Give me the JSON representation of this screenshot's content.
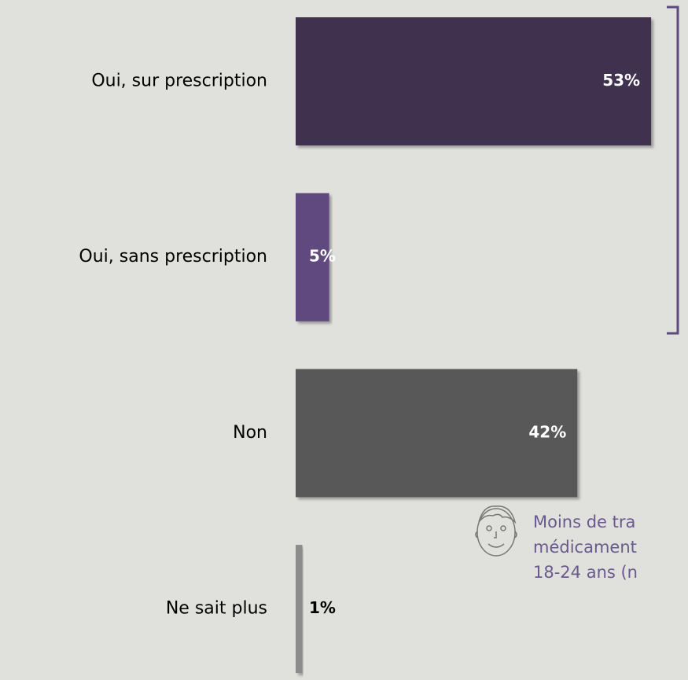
{
  "chart_data": {
    "type": "hbar",
    "categories": [
      "Oui, sur prescription",
      "Oui, sans prescription",
      "Non",
      "Ne sait plus"
    ],
    "values": [
      53,
      5,
      42,
      1
    ],
    "value_labels": [
      "53%",
      "5%",
      "42%",
      "1%"
    ],
    "colors": [
      "#403050",
      "#5e4a7e",
      "#595959",
      "#8c8c8c"
    ],
    "value_label_colors": [
      "#ffffff",
      "#ffffff",
      "#ffffff",
      "#000000"
    ],
    "annotation": [
      "Moins de tra",
      "médicament",
      "18-24 ans (n"
    ]
  }
}
